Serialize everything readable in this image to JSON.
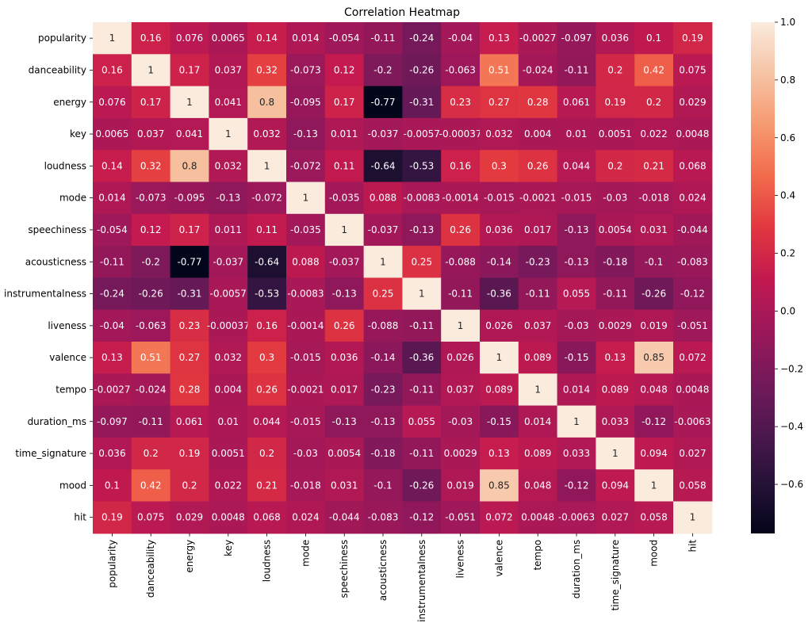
{
  "chart_data": {
    "type": "heatmap",
    "title": "Correlation Heatmap",
    "xlabel": "",
    "ylabel": "",
    "labels": [
      "popularity",
      "danceability",
      "energy",
      "key",
      "loudness",
      "mode",
      "speechiness",
      "acousticness",
      "instrumentalness",
      "liveness",
      "valence",
      "tempo",
      "duration_ms",
      "time_signature",
      "mood",
      "hit"
    ],
    "values": [
      [
        1,
        0.16,
        0.076,
        0.0065,
        0.14,
        0.014,
        -0.054,
        -0.11,
        -0.24,
        -0.04,
        0.13,
        -0.0027,
        -0.097,
        0.036,
        0.1,
        0.19
      ],
      [
        0.16,
        1,
        0.17,
        0.037,
        0.32,
        -0.073,
        0.12,
        -0.2,
        -0.26,
        -0.063,
        0.51,
        -0.024,
        -0.11,
        0.2,
        0.42,
        0.075
      ],
      [
        0.076,
        0.17,
        1,
        0.041,
        0.8,
        -0.095,
        0.17,
        -0.77,
        -0.31,
        0.23,
        0.27,
        0.28,
        0.061,
        0.19,
        0.2,
        0.029
      ],
      [
        0.0065,
        0.037,
        0.041,
        1,
        0.032,
        -0.13,
        0.011,
        -0.037,
        -0.0057,
        -0.00037,
        0.032,
        0.004,
        0.01,
        0.0051,
        0.022,
        0.0048
      ],
      [
        0.14,
        0.32,
        0.8,
        0.032,
        1,
        -0.072,
        0.11,
        -0.64,
        -0.53,
        0.16,
        0.3,
        0.26,
        0.044,
        0.2,
        0.21,
        0.068
      ],
      [
        0.014,
        -0.073,
        -0.095,
        -0.13,
        -0.072,
        1,
        -0.035,
        0.088,
        -0.0083,
        -0.0014,
        -0.015,
        -0.0021,
        -0.015,
        -0.03,
        -0.018,
        0.024
      ],
      [
        -0.054,
        0.12,
        0.17,
        0.011,
        0.11,
        -0.035,
        1,
        -0.037,
        -0.13,
        0.26,
        0.036,
        0.017,
        -0.13,
        0.0054,
        0.031,
        -0.044
      ],
      [
        -0.11,
        -0.2,
        -0.77,
        -0.037,
        -0.64,
        0.088,
        -0.037,
        1,
        0.25,
        -0.088,
        -0.14,
        -0.23,
        -0.13,
        -0.18,
        -0.1,
        -0.083
      ],
      [
        -0.24,
        -0.26,
        -0.31,
        -0.0057,
        -0.53,
        -0.0083,
        -0.13,
        0.25,
        1,
        -0.11,
        -0.36,
        -0.11,
        0.055,
        -0.11,
        -0.26,
        -0.12
      ],
      [
        -0.04,
        -0.063,
        0.23,
        -0.00037,
        0.16,
        -0.0014,
        0.26,
        -0.088,
        -0.11,
        1,
        0.026,
        0.037,
        -0.03,
        0.0029,
        0.019,
        -0.051
      ],
      [
        0.13,
        0.51,
        0.27,
        0.032,
        0.3,
        -0.015,
        0.036,
        -0.14,
        -0.36,
        0.026,
        1,
        0.089,
        -0.15,
        0.13,
        0.85,
        0.072
      ],
      [
        -0.0027,
        -0.024,
        0.28,
        0.004,
        0.26,
        -0.0021,
        0.017,
        -0.23,
        -0.11,
        0.037,
        0.089,
        1,
        0.014,
        0.089,
        0.048,
        0.0048
      ],
      [
        -0.097,
        -0.11,
        0.061,
        0.01,
        0.044,
        -0.015,
        -0.13,
        -0.13,
        0.055,
        -0.03,
        -0.15,
        0.014,
        1,
        0.033,
        -0.12,
        -0.0063
      ],
      [
        0.036,
        0.2,
        0.19,
        0.0051,
        0.2,
        -0.03,
        0.0054,
        -0.18,
        -0.11,
        0.0029,
        0.13,
        0.089,
        0.033,
        1,
        0.094,
        0.027
      ],
      [
        0.1,
        0.42,
        0.2,
        0.022,
        0.21,
        -0.018,
        0.031,
        -0.1,
        -0.26,
        0.019,
        0.85,
        0.048,
        -0.12,
        0.094,
        1,
        0.058
      ],
      [
        0.19,
        0.075,
        0.029,
        0.0048,
        0.068,
        0.024,
        -0.044,
        -0.083,
        -0.12,
        -0.051,
        0.072,
        0.0048,
        -0.0063,
        0.027,
        0.058,
        1
      ]
    ],
    "vmin": -0.77,
    "vmax": 1.0,
    "colorbar_ticks": [
      1.0,
      0.8,
      0.6,
      0.4,
      0.2,
      0.0,
      -0.2,
      -0.4,
      -0.6
    ],
    "colorbar_tick_labels": [
      "1.0",
      "0.8",
      "0.6",
      "0.4",
      "0.2",
      "0.0",
      "−0.2",
      "−0.4",
      "−0.6"
    ],
    "colormap": "rocket"
  }
}
